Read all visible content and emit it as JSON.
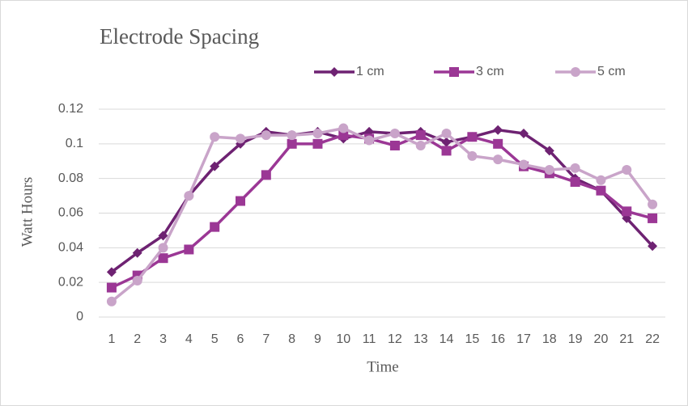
{
  "chart_data": {
    "type": "line",
    "title": "Electrode Spacing",
    "x_label": "Time",
    "y_label": "Watt Hours",
    "categories": [
      1,
      2,
      3,
      4,
      5,
      6,
      7,
      8,
      9,
      10,
      11,
      12,
      13,
      14,
      15,
      16,
      17,
      18,
      19,
      20,
      21,
      22
    ],
    "series": [
      {
        "name": "1 cm",
        "color": "#6e2272",
        "marker": "diamond",
        "values": [
          0.026,
          0.037,
          0.047,
          0.07,
          0.087,
          0.1,
          0.107,
          0.105,
          0.107,
          0.103,
          0.107,
          0.106,
          0.107,
          0.101,
          0.104,
          0.108,
          0.106,
          0.096,
          0.08,
          0.073,
          0.057,
          0.041
        ]
      },
      {
        "name": "3 cm",
        "color": "#9b3795",
        "marker": "square",
        "values": [
          0.017,
          0.024,
          0.034,
          0.039,
          0.052,
          0.067,
          0.082,
          0.1,
          0.1,
          0.105,
          0.103,
          0.099,
          0.105,
          0.096,
          0.104,
          0.1,
          0.087,
          0.083,
          0.078,
          0.073,
          0.061,
          0.057
        ]
      },
      {
        "name": "5 cm",
        "color": "#c9a4c9",
        "marker": "circle",
        "values": [
          0.009,
          0.021,
          0.04,
          0.07,
          0.104,
          0.103,
          0.105,
          0.105,
          0.106,
          0.109,
          0.102,
          0.106,
          0.099,
          0.106,
          0.093,
          0.091,
          0.088,
          0.085,
          0.086,
          0.079,
          0.085,
          0.065
        ]
      }
    ],
    "ylim": [
      0,
      0.12
    ],
    "yticks": [
      0,
      0.02,
      0.04,
      0.06,
      0.08,
      0.1,
      0.12
    ],
    "grid": true
  }
}
